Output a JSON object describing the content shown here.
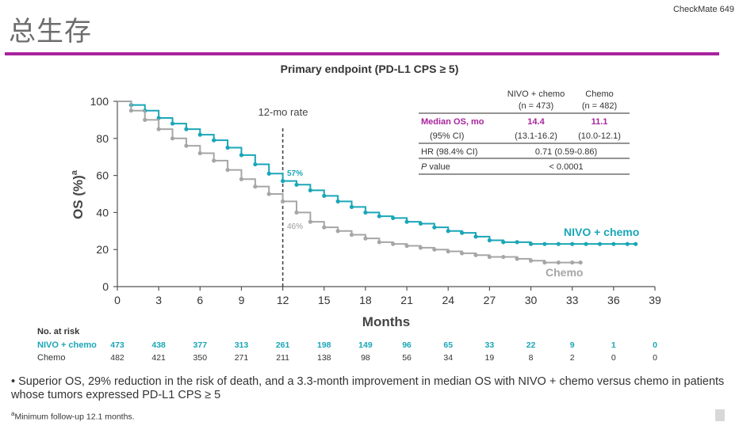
{
  "slide": {
    "title": "总生存",
    "trial_name": "CheckMate 649",
    "accent_color": "#a9249d"
  },
  "chart_data": {
    "type": "line",
    "title": "Primary endpoint (PD-L1 CPS ≥ 5)",
    "xlabel": "Months",
    "ylabel": "OS (%)",
    "ylabel_superscript": "a",
    "xlim": [
      0,
      39
    ],
    "ylim": [
      0,
      100
    ],
    "xticks": [
      0,
      3,
      6,
      9,
      12,
      15,
      18,
      21,
      24,
      27,
      30,
      33,
      36,
      39
    ],
    "yticks": [
      0,
      20,
      40,
      60,
      80,
      100
    ],
    "grid": false,
    "series": [
      {
        "name": "NIVO + chemo",
        "color": "#1aa6b7",
        "x": [
          0,
          1,
          2,
          3,
          4,
          5,
          6,
          7,
          8,
          9,
          10,
          11,
          12,
          13,
          14,
          15,
          16,
          17,
          18,
          19,
          20,
          21,
          22,
          23,
          24,
          25,
          26,
          27,
          28,
          29,
          30,
          31,
          32,
          33,
          34,
          35,
          36,
          37,
          37.6
        ],
        "y": [
          100,
          98,
          95,
          91,
          88,
          85,
          82,
          79,
          75,
          71,
          66,
          61,
          57,
          55,
          52,
          49,
          46,
          43,
          40,
          38,
          37,
          35,
          34,
          32,
          30,
          29,
          27,
          25,
          24,
          24,
          23,
          23,
          23,
          23,
          23,
          23,
          23,
          23,
          23
        ]
      },
      {
        "name": "Chemo",
        "color": "#a6a6a6",
        "x": [
          0,
          1,
          2,
          3,
          4,
          5,
          6,
          7,
          8,
          9,
          10,
          11,
          12,
          13,
          14,
          15,
          16,
          17,
          18,
          19,
          20,
          21,
          22,
          23,
          24,
          25,
          26,
          27,
          28,
          29,
          30,
          31,
          32,
          33,
          33.6
        ],
        "y": [
          100,
          95,
          90,
          85,
          80,
          76,
          72,
          68,
          63,
          58,
          54,
          50,
          46,
          40,
          35,
          32,
          30,
          28,
          26,
          24,
          23,
          22,
          21,
          20,
          19,
          18,
          17,
          16,
          16,
          15,
          14,
          13,
          13,
          13,
          13
        ]
      }
    ],
    "annotations": {
      "landmark_label": "12-mo rate",
      "landmark_month": 12,
      "nivo_12mo": "57%",
      "chemo_12mo": "46%",
      "nivo_curve_label": "NIVO + chemo",
      "chemo_curve_label": "Chemo"
    },
    "stats_table": {
      "col1_header_1": "NIVO + chemo",
      "col1_header_2": "(n = 473)",
      "col2_header_1": "Chemo",
      "col2_header_2": "(n = 482)",
      "median_label": "Median OS, mo",
      "median_nivo": "14.4",
      "median_chemo": "11.1",
      "ci_label": "(95% CI)",
      "ci_nivo": "(13.1-16.2)",
      "ci_chemo": "(10.0-12.1)",
      "hr_label": "HR (98.4% CI)",
      "hr_value": "0.71 (0.59-0.86)",
      "p_label_italic": "P",
      "p_label_rest": " value",
      "p_value": "< 0.0001"
    },
    "at_risk": {
      "title": "No. at risk",
      "rows": [
        {
          "label": "NIVO + chemo",
          "color": "#1aa6b7",
          "values": [
            "473",
            "438",
            "377",
            "313",
            "261",
            "198",
            "149",
            "96",
            "65",
            "33",
            "22",
            "9",
            "1",
            "0"
          ]
        },
        {
          "label": "Chemo",
          "color": "#333333",
          "values": [
            "482",
            "421",
            "350",
            "271",
            "211",
            "138",
            "98",
            "56",
            "34",
            "19",
            "8",
            "2",
            "0",
            "0"
          ]
        }
      ]
    }
  },
  "notes": {
    "bullet": "Superior OS, 29% reduction in the risk of death, and a 3.3-month improvement in median OS with NIVO + chemo versus chemo in patients whose tumors expressed PD-L1 CPS ≥ 5",
    "footnote_marker": "a",
    "footnote": "Minimum follow-up 12.1 months."
  }
}
